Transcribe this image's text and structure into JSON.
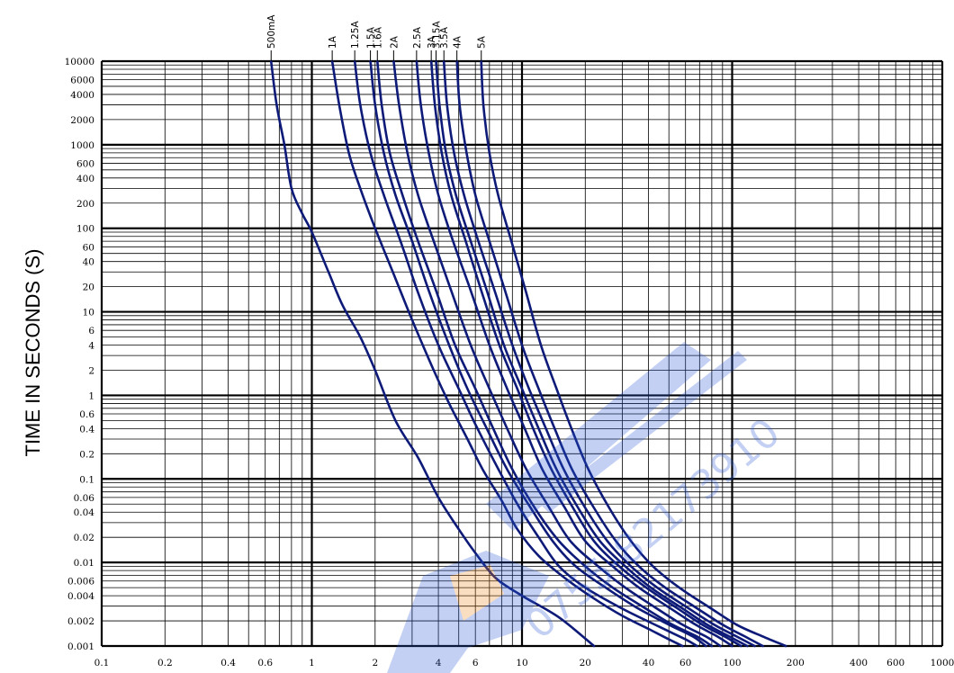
{
  "chart_data": {
    "type": "line",
    "title": "",
    "xlabel": "",
    "ylabel": "TIME IN SECONDS  (S)",
    "x_scale": "log",
    "y_scale": "log",
    "xlim": [
      0.1,
      1000
    ],
    "ylim": [
      0.001,
      10000
    ],
    "grid": true,
    "legend": "labels at top of each curve",
    "line_color": "#0d1a78",
    "x_tick_labels": [
      "0.1",
      "0.2",
      "0.4",
      "0.6",
      "1",
      "2",
      "4",
      "6",
      "10",
      "20",
      "40",
      "60",
      "100",
      "200",
      "400",
      "600",
      "1000"
    ],
    "y_tick_labels": [
      "10000",
      "6000",
      "4000",
      "2000",
      "1000",
      "600",
      "400",
      "200",
      "100",
      "60",
      "40",
      "20",
      "10",
      "6",
      "4",
      "2",
      "1",
      "0.6",
      "0.4",
      "0.2",
      "0.1",
      "0.06",
      "0.04",
      "0.02",
      "0.01",
      "0.006",
      "0.004",
      "0.002",
      "0.001"
    ],
    "watermark": {
      "text": "0755-82173910",
      "color": "#2a5bd7",
      "accent_color": "#f08a24"
    },
    "series": [
      {
        "name": "500mA",
        "points": [
          [
            0.64,
            10000
          ],
          [
            0.68,
            3000
          ],
          [
            0.74,
            1000
          ],
          [
            0.8,
            300
          ],
          [
            0.9,
            150
          ],
          [
            1.0,
            90
          ],
          [
            1.2,
            30
          ],
          [
            1.4,
            12
          ],
          [
            1.7,
            5
          ],
          [
            2.0,
            2
          ],
          [
            2.5,
            0.5
          ],
          [
            3.2,
            0.18
          ],
          [
            4.0,
            0.06
          ],
          [
            5.0,
            0.025
          ],
          [
            6.0,
            0.013
          ],
          [
            7.5,
            0.0065
          ],
          [
            10,
            0.004
          ],
          [
            15,
            0.0022
          ],
          [
            22,
            0.001
          ]
        ]
      },
      {
        "name": "1A",
        "points": [
          [
            1.25,
            10000
          ],
          [
            1.35,
            3000
          ],
          [
            1.5,
            800
          ],
          [
            1.7,
            300
          ],
          [
            2.0,
            100
          ],
          [
            2.5,
            25
          ],
          [
            3.0,
            8
          ],
          [
            3.8,
            2
          ],
          [
            4.5,
            0.8
          ],
          [
            5.5,
            0.3
          ],
          [
            6.5,
            0.13
          ],
          [
            8.0,
            0.055
          ],
          [
            9.5,
            0.025
          ],
          [
            12,
            0.012
          ],
          [
            16,
            0.0065
          ],
          [
            22,
            0.0037
          ],
          [
            30,
            0.0023
          ],
          [
            40,
            0.0016
          ],
          [
            50,
            0.0012
          ],
          [
            58,
            0.001
          ]
        ]
      },
      {
        "name": "1.25A",
        "points": [
          [
            1.6,
            10000
          ],
          [
            1.7,
            3000
          ],
          [
            1.9,
            800
          ],
          [
            2.2,
            250
          ],
          [
            2.7,
            60
          ],
          [
            3.2,
            17
          ],
          [
            4.0,
            4
          ],
          [
            5.0,
            1.2
          ],
          [
            6.0,
            0.45
          ],
          [
            7.5,
            0.15
          ],
          [
            9.5,
            0.05
          ],
          [
            12,
            0.02
          ],
          [
            15,
            0.009
          ],
          [
            20,
            0.005
          ],
          [
            30,
            0.0028
          ],
          [
            45,
            0.0017
          ],
          [
            60,
            0.0012
          ],
          [
            68,
            0.001
          ]
        ]
      },
      {
        "name": "1.5A",
        "points": [
          [
            1.9,
            10000
          ],
          [
            2.0,
            3000
          ],
          [
            2.2,
            800
          ],
          [
            2.5,
            250
          ],
          [
            3.0,
            70
          ],
          [
            3.6,
            18
          ],
          [
            4.5,
            4
          ],
          [
            5.5,
            1.2
          ],
          [
            6.8,
            0.4
          ],
          [
            8.5,
            0.13
          ],
          [
            11,
            0.045
          ],
          [
            14,
            0.018
          ],
          [
            18,
            0.009
          ],
          [
            25,
            0.005
          ],
          [
            35,
            0.0029
          ],
          [
            50,
            0.0018
          ],
          [
            65,
            0.0013
          ],
          [
            75,
            0.001
          ]
        ]
      },
      {
        "name": "1.6A",
        "points": [
          [
            2.05,
            10000
          ],
          [
            2.15,
            3000
          ],
          [
            2.35,
            800
          ],
          [
            2.7,
            250
          ],
          [
            3.2,
            70
          ],
          [
            3.9,
            18
          ],
          [
            4.8,
            4
          ],
          [
            6.0,
            1.2
          ],
          [
            7.3,
            0.4
          ],
          [
            9.0,
            0.13
          ],
          [
            11.5,
            0.045
          ],
          [
            15,
            0.018
          ],
          [
            20,
            0.009
          ],
          [
            27,
            0.005
          ],
          [
            38,
            0.0029
          ],
          [
            52,
            0.0018
          ],
          [
            68,
            0.0013
          ],
          [
            80,
            0.001
          ]
        ]
      },
      {
        "name": "2A",
        "points": [
          [
            2.45,
            10000
          ],
          [
            2.6,
            3000
          ],
          [
            2.85,
            800
          ],
          [
            3.2,
            250
          ],
          [
            3.8,
            70
          ],
          [
            4.6,
            18
          ],
          [
            5.7,
            4
          ],
          [
            7.0,
            1.2
          ],
          [
            8.5,
            0.4
          ],
          [
            10.5,
            0.13
          ],
          [
            13.5,
            0.045
          ],
          [
            17,
            0.018
          ],
          [
            23,
            0.009
          ],
          [
            31,
            0.005
          ],
          [
            43,
            0.0029
          ],
          [
            58,
            0.0018
          ],
          [
            75,
            0.0013
          ],
          [
            88,
            0.001
          ]
        ]
      },
      {
        "name": "2.5A",
        "points": [
          [
            3.15,
            10000
          ],
          [
            3.3,
            3000
          ],
          [
            3.6,
            800
          ],
          [
            4.0,
            250
          ],
          [
            4.7,
            70
          ],
          [
            5.7,
            18
          ],
          [
            7.0,
            4
          ],
          [
            8.5,
            1.2
          ],
          [
            10.3,
            0.4
          ],
          [
            12.5,
            0.13
          ],
          [
            16,
            0.045
          ],
          [
            20,
            0.018
          ],
          [
            27,
            0.009
          ],
          [
            36,
            0.005
          ],
          [
            50,
            0.0029
          ],
          [
            67,
            0.0018
          ],
          [
            85,
            0.0013
          ],
          [
            100,
            0.001
          ]
        ]
      },
      {
        "name": "3A",
        "points": [
          [
            3.7,
            10000
          ],
          [
            3.85,
            3000
          ],
          [
            4.15,
            800
          ],
          [
            4.6,
            250
          ],
          [
            5.4,
            70
          ],
          [
            6.4,
            18
          ],
          [
            7.8,
            4
          ],
          [
            9.5,
            1.2
          ],
          [
            11.3,
            0.4
          ],
          [
            13.8,
            0.13
          ],
          [
            17.5,
            0.045
          ],
          [
            22,
            0.018
          ],
          [
            29,
            0.009
          ],
          [
            39,
            0.005
          ],
          [
            54,
            0.0029
          ],
          [
            72,
            0.0018
          ],
          [
            92,
            0.0013
          ],
          [
            110,
            0.001
          ]
        ]
      },
      {
        "name": "3.15A",
        "points": [
          [
            3.9,
            10000
          ],
          [
            4.05,
            3000
          ],
          [
            4.35,
            800
          ],
          [
            4.85,
            250
          ],
          [
            5.7,
            70
          ],
          [
            6.8,
            18
          ],
          [
            8.2,
            4
          ],
          [
            10,
            1.2
          ],
          [
            12,
            0.4
          ],
          [
            14.6,
            0.13
          ],
          [
            18.5,
            0.045
          ],
          [
            23.5,
            0.018
          ],
          [
            31,
            0.009
          ],
          [
            41,
            0.005
          ],
          [
            57,
            0.0029
          ],
          [
            76,
            0.0018
          ],
          [
            97,
            0.0013
          ],
          [
            118,
            0.001
          ]
        ]
      },
      {
        "name": "3.5A",
        "points": [
          [
            4.25,
            10000
          ],
          [
            4.4,
            3000
          ],
          [
            4.75,
            800
          ],
          [
            5.3,
            250
          ],
          [
            6.2,
            70
          ],
          [
            7.4,
            18
          ],
          [
            9.0,
            4
          ],
          [
            10.8,
            1.2
          ],
          [
            13,
            0.4
          ],
          [
            15.8,
            0.13
          ],
          [
            20,
            0.045
          ],
          [
            25.5,
            0.018
          ],
          [
            33,
            0.009
          ],
          [
            44,
            0.005
          ],
          [
            61,
            0.0029
          ],
          [
            82,
            0.0018
          ],
          [
            105,
            0.0013
          ],
          [
            128,
            0.001
          ]
        ]
      },
      {
        "name": "4A",
        "points": [
          [
            4.9,
            10000
          ],
          [
            5.05,
            3000
          ],
          [
            5.45,
            800
          ],
          [
            6.0,
            250
          ],
          [
            7.0,
            70
          ],
          [
            8.3,
            18
          ],
          [
            10,
            4
          ],
          [
            12,
            1.2
          ],
          [
            14.3,
            0.4
          ],
          [
            17.3,
            0.13
          ],
          [
            22,
            0.045
          ],
          [
            28,
            0.018
          ],
          [
            36,
            0.009
          ],
          [
            48,
            0.005
          ],
          [
            67,
            0.0029
          ],
          [
            90,
            0.0018
          ],
          [
            115,
            0.0013
          ],
          [
            140,
            0.001
          ]
        ]
      },
      {
        "name": "5A",
        "points": [
          [
            6.4,
            10000
          ],
          [
            6.55,
            3000
          ],
          [
            7.0,
            800
          ],
          [
            7.7,
            250
          ],
          [
            8.9,
            70
          ],
          [
            10.4,
            18
          ],
          [
            12.3,
            4
          ],
          [
            14.6,
            1.2
          ],
          [
            17.2,
            0.4
          ],
          [
            20.7,
            0.13
          ],
          [
            26,
            0.045
          ],
          [
            33,
            0.018
          ],
          [
            42,
            0.009
          ],
          [
            56,
            0.005
          ],
          [
            78,
            0.0029
          ],
          [
            105,
            0.0018
          ],
          [
            140,
            0.0013
          ],
          [
            180,
            0.001
          ]
        ]
      }
    ]
  }
}
